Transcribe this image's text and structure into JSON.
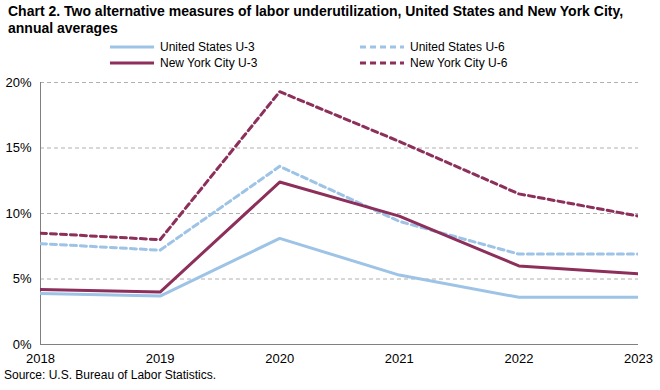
{
  "chart_data": {
    "type": "line",
    "title": "Chart 2. Two alternative measures of labor underutilization, United States and New York City, annual averages",
    "caption": "Source: U.S. Bureau of Labor Statistics.",
    "x": [
      2018,
      2019,
      2020,
      2021,
      2022,
      2023
    ],
    "xlim": [
      2018,
      2023
    ],
    "xticks": [
      2018,
      2019,
      2020,
      2021,
      2022,
      2023
    ],
    "ylim": [
      0,
      20
    ],
    "yticks": [
      {
        "value": 0,
        "label": "0%"
      },
      {
        "value": 5,
        "label": "5%"
      },
      {
        "value": 10,
        "label": "10%"
      },
      {
        "value": 15,
        "label": "15%"
      },
      {
        "value": 20,
        "label": "20%"
      }
    ],
    "grid": true,
    "legend": "top",
    "series": [
      {
        "name": "United States U-3",
        "color": "#9dc3e6",
        "line_style": "solid",
        "values": [
          3.9,
          3.7,
          8.1,
          5.3,
          3.6,
          3.6
        ]
      },
      {
        "name": "United States U-6",
        "color": "#9dc3e6",
        "line_style": "dashed",
        "values": [
          7.7,
          7.2,
          13.6,
          9.4,
          6.9,
          6.9
        ]
      },
      {
        "name": "New York City U-3",
        "color": "#8c2f5b",
        "line_style": "solid",
        "values": [
          4.2,
          4.0,
          12.4,
          9.8,
          6.0,
          5.4
        ]
      },
      {
        "name": "New York City U-6",
        "color": "#8c2f5b",
        "line_style": "dashed",
        "values": [
          8.5,
          8.0,
          19.3,
          15.5,
          11.5,
          9.8
        ]
      }
    ]
  }
}
